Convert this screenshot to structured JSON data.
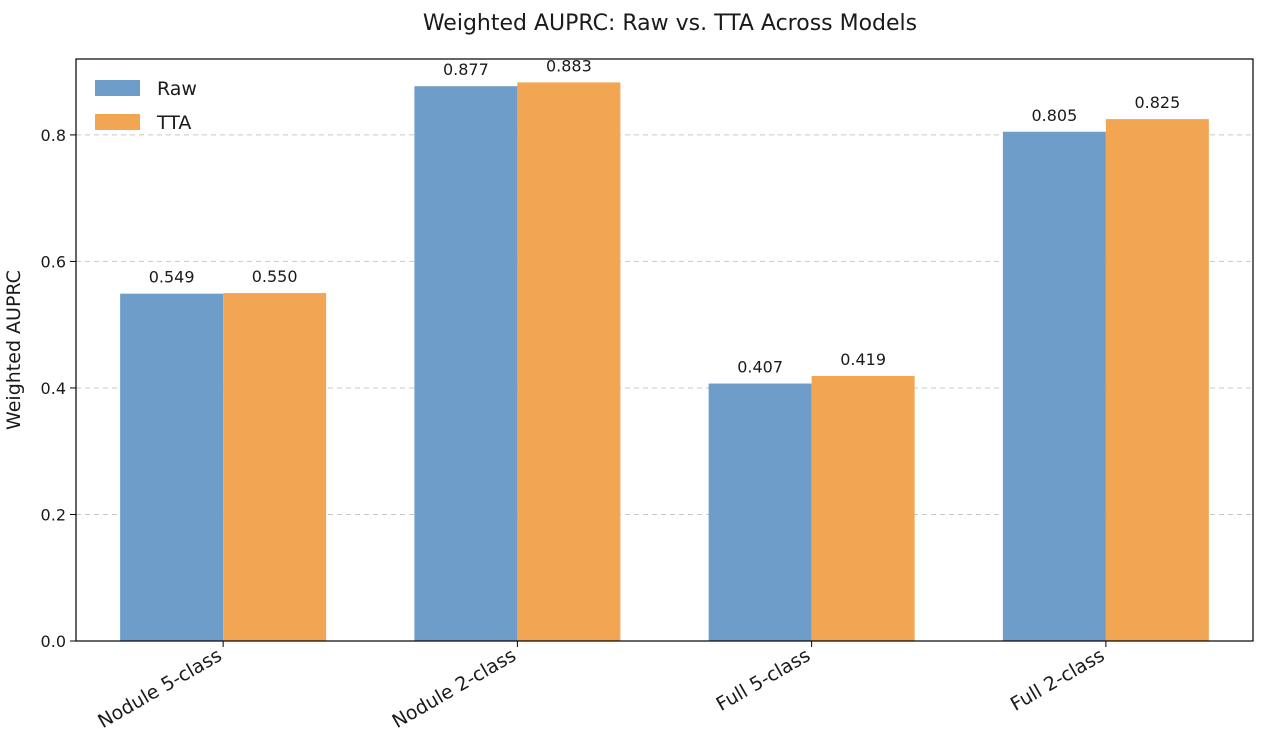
{
  "chart_data": {
    "type": "bar",
    "title": "Weighted AUPRC: Raw vs. TTA Across Models",
    "xlabel": "",
    "ylabel": "Weighted AUPRC",
    "categories": [
      "Nodule 5-class",
      "Nodule 2-class",
      "Full 5-class",
      "Full 2-class"
    ],
    "series": [
      {
        "name": "Raw",
        "values": [
          0.549,
          0.877,
          0.407,
          0.805
        ],
        "labels": [
          "0.549",
          "0.877",
          "0.407",
          "0.805"
        ],
        "color": "#6f9dca"
      },
      {
        "name": "TTA",
        "values": [
          0.55,
          0.883,
          0.419,
          0.825
        ],
        "labels": [
          "0.550",
          "0.883",
          "0.419",
          "0.825"
        ],
        "color": "#f2a553"
      }
    ],
    "ylim": [
      0,
      0.92
    ],
    "yticks": [
      0.0,
      0.2,
      0.4,
      0.6,
      0.8
    ],
    "ytick_labels": [
      "0.0",
      "0.2",
      "0.4",
      "0.6",
      "0.8"
    ],
    "grid": "y-dashed",
    "legend": "top-left"
  }
}
